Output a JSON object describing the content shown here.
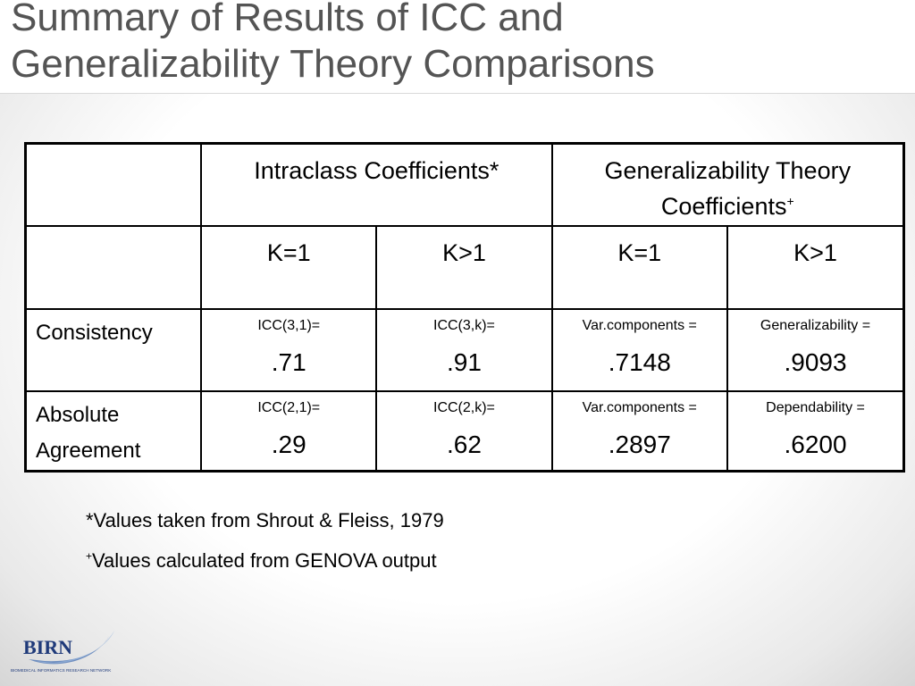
{
  "slide": {
    "title_line1": "Summary of Results of ICC and",
    "title_line2": "Generalizability Theory Comparisons"
  },
  "table": {
    "header_icc": "Intraclass Coefficients*",
    "header_gt_line1": "Generalizability Theory",
    "header_gt_line2": "Coefficients",
    "header_gt_mark": "+",
    "k_labels": [
      "K=1",
      "K>1",
      "K=1",
      "K>1"
    ],
    "rows": [
      {
        "label_line1": "Consistency",
        "label_line2": "",
        "cells": [
          {
            "caption": "ICC(3,1)=",
            "value": ".71"
          },
          {
            "caption": "ICC(3,k)=",
            "value": ".91"
          },
          {
            "caption": "Var.components =",
            "value": ".7148"
          },
          {
            "caption": "Generalizability  =",
            "value": ".9093"
          }
        ]
      },
      {
        "label_line1": "Absolute",
        "label_line2": "Agreement",
        "cells": [
          {
            "caption": "ICC(2,1)=",
            "value": ".29"
          },
          {
            "caption": "ICC(2,k)=",
            "value": ".62"
          },
          {
            "caption": "Var.components =",
            "value": ".2897"
          },
          {
            "caption": "Dependability =",
            "value": ".6200"
          }
        ]
      }
    ]
  },
  "notes": {
    "note1": "*Values taken from Shrout & Fleiss, 1979",
    "note2_mark": "+",
    "note2": "Values calculated from GENOVA output"
  },
  "logo": {
    "name": "BIRN",
    "tagline": "BIOMEDICAL INFORMATICS RESEARCH NETWORK",
    "color": "#1f3a7a"
  }
}
